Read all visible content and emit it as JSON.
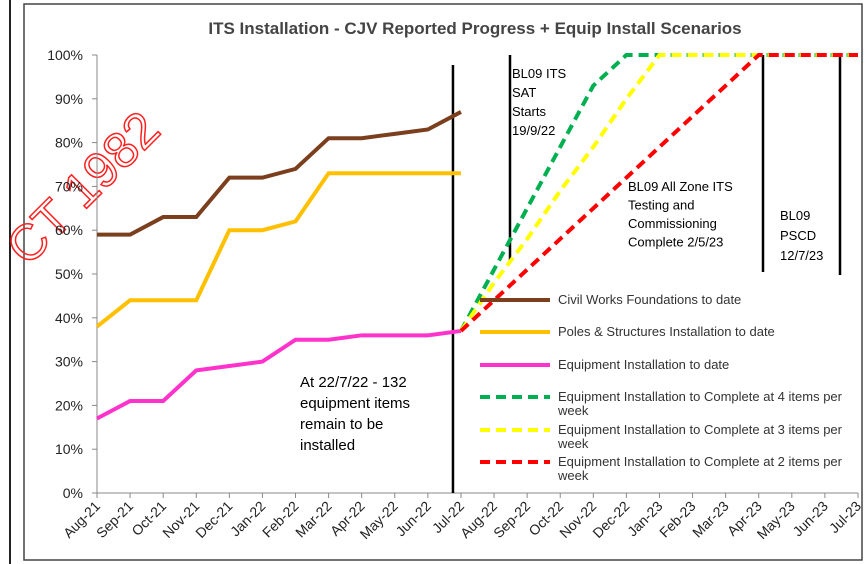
{
  "chart_data": {
    "type": "line",
    "title": "ITS Installation - CJV Reported Progress + Equip Install Scenarios",
    "watermark": "CT 1982",
    "categories": [
      "Aug-21",
      "Sep-21",
      "Oct-21",
      "Nov-21",
      "Dec-21",
      "Jan-22",
      "Feb-22",
      "Mar-22",
      "Apr-22",
      "May-22",
      "Jun-22",
      "Jul-22",
      "Aug-22",
      "Sep-22",
      "Oct-22",
      "Nov-22",
      "Dec-22",
      "Jan-23",
      "Feb-23",
      "Mar-23",
      "Apr-23",
      "May-23",
      "Jun-23",
      "Jul-23"
    ],
    "series": [
      {
        "name": "Civil Works Foundations to date",
        "color": "#7b3f1e",
        "style": "solid",
        "values": [
          59,
          59,
          63,
          63,
          72,
          72,
          74,
          81,
          81,
          82,
          83,
          87,
          null,
          null,
          null,
          null,
          null,
          null,
          null,
          null,
          null,
          null,
          null,
          null
        ]
      },
      {
        "name": "Poles & Structures Installation to date",
        "color": "#ffc000",
        "style": "solid",
        "values": [
          38,
          44,
          44,
          44,
          60,
          60,
          62,
          73,
          73,
          73,
          73,
          73,
          null,
          null,
          null,
          null,
          null,
          null,
          null,
          null,
          null,
          null,
          null,
          null
        ]
      },
      {
        "name": "Equipment Installation to date",
        "color": "#ff33cc",
        "style": "solid",
        "values": [
          17,
          21,
          21,
          28,
          29,
          30,
          35,
          35,
          36,
          36,
          36,
          37,
          null,
          null,
          null,
          null,
          null,
          null,
          null,
          null,
          null,
          null,
          null,
          null
        ]
      },
      {
        "name": "Equipment Installation to Complete at 4 items  per week",
        "color": "#00b050",
        "style": "dashed",
        "values": [
          null,
          null,
          null,
          null,
          null,
          null,
          null,
          null,
          null,
          null,
          null,
          37,
          51,
          65,
          79,
          93,
          100,
          100,
          100,
          100,
          100,
          100,
          100,
          100
        ]
      },
      {
        "name": "Equipment Installation to Complete at 3 items per week",
        "color": "#ffff00",
        "style": "dashed",
        "values": [
          null,
          null,
          null,
          null,
          null,
          null,
          null,
          null,
          null,
          null,
          null,
          37,
          48,
          58,
          69,
          79,
          90,
          100,
          100,
          100,
          100,
          100,
          100,
          100
        ]
      },
      {
        "name": "Equipment Installation to Complete at 2 items per week",
        "color": "#ff0000",
        "style": "dashed",
        "values": [
          null,
          null,
          null,
          null,
          null,
          null,
          null,
          null,
          null,
          null,
          null,
          37,
          44,
          51,
          58,
          65,
          72,
          79,
          86,
          93,
          100,
          100,
          100,
          100
        ]
      }
    ],
    "ylim": [
      0,
      100
    ],
    "yticks": [
      {
        "value": 0,
        "label": "0%"
      },
      {
        "value": 10,
        "label": "10%"
      },
      {
        "value": 20,
        "label": "20%"
      },
      {
        "value": 30,
        "label": "30%"
      },
      {
        "value": 40,
        "label": "40%"
      },
      {
        "value": 50,
        "label": "50%"
      },
      {
        "value": 60,
        "label": "60%"
      },
      {
        "value": 70,
        "label": "70%"
      },
      {
        "value": 80,
        "label": "80%"
      },
      {
        "value": 90,
        "label": "90%"
      },
      {
        "value": 100,
        "label": "100%"
      }
    ],
    "grid": false,
    "annotations": [
      {
        "lines": [
          "At 22/7/22 - 132",
          "equipment items",
          "remain to be",
          "installed"
        ]
      },
      {
        "lines": [
          "BL09 ITS",
          "SAT",
          "Starts",
          "19/9/22"
        ]
      },
      {
        "lines": [
          "BL09 All Zone ITS",
          "Testing and",
          "Commissioning",
          "Complete 2/5/23"
        ]
      },
      {
        "lines": [
          "BL09",
          "PSCD",
          "12/7/23"
        ]
      }
    ]
  }
}
